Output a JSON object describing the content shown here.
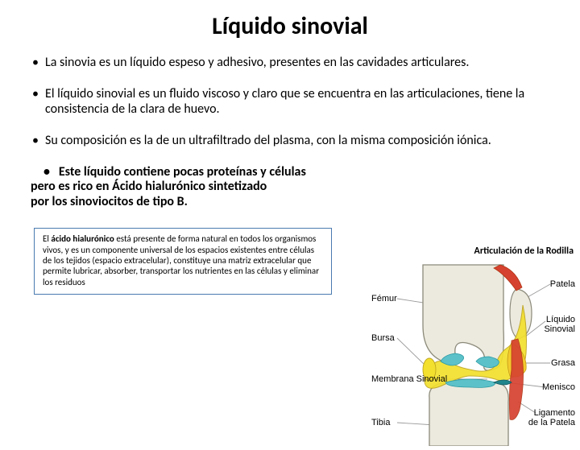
{
  "title": "Líquido sinovial",
  "bullets": [
    "La sinovia es un líquido espeso y adhesivo, presentes en las cavidades articulares.",
    "El líquido sinovial es un fluido viscoso y claro que se encuentra en las articulaciones, tiene la consistencia de la clara de huevo.",
    "Su composición es la de un ultrafiltrado del plasma, con la misma composición iónica."
  ],
  "bullet_last_lines": [
    "Este líquido contiene pocas proteínas y células",
    " pero es rico en Ácido hialurónico sintetizado",
    "por los sinoviocitos de tipo B."
  ],
  "callout_bold": "ácido hialurónico",
  "callout_prefix": "El ",
  "callout_rest": " está presente de forma natural en todos los organismos vivos, y es un componente universal de los espacios existentes entre células de los tejidos (espacio extracelular), constituye una matriz extracelular que permite lubricar, absorber, transportar los nutrientes en las células y eliminar los residuos",
  "diagram": {
    "title": "Articulación de la Rodilla",
    "labels": {
      "femur": "Fémur",
      "bursa": "Bursa",
      "membrana": "Membrana Sinovial",
      "tibia": "Tibia",
      "patela": "Patela",
      "liquido1": "Líquido",
      "liquido2": "Sinovial",
      "grasa": "Grasa",
      "menisco": "Menisco",
      "ligamento1": "Ligamento",
      "ligamento2": "de la Patela"
    },
    "colors": {
      "bone": "#eceade",
      "bone_outline": "#8c8a7a",
      "ligament_red": "#d64230",
      "ligament_dark": "#b03514",
      "synovial_yellow": "#f3e02e",
      "synovial_outline": "#bea51e",
      "cartilage": "#5dc1c9",
      "grasa": "#f3ca2e",
      "leader": "#9a9a9a"
    }
  }
}
